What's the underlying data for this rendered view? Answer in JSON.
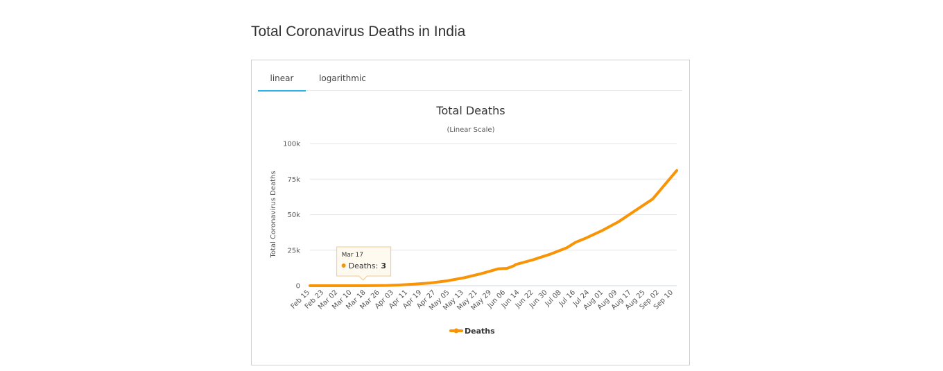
{
  "page": {
    "title": "Total Coronavirus Deaths in India"
  },
  "tabs": [
    {
      "label": "linear",
      "active": true
    },
    {
      "label": "logarithmic",
      "active": false
    }
  ],
  "colors": {
    "series": "#f89406",
    "tab_active": "#2cb5e8",
    "grid": "#e6e6e6"
  },
  "tooltip": {
    "date": "Mar 17",
    "series_label": "Deaths:",
    "value": "3",
    "x_index": 31
  },
  "legend": {
    "label": "Deaths"
  },
  "chart_data": {
    "type": "line",
    "title": "Total Deaths",
    "subtitle": "(Linear Scale)",
    "xlabel": "",
    "ylabel": "Total Coronavirus Deaths",
    "ylim": [
      0,
      100000
    ],
    "y_ticks": [
      0,
      25000,
      50000,
      75000,
      100000
    ],
    "y_tick_labels": [
      "0",
      "25k",
      "50k",
      "75k",
      "100k"
    ],
    "x_start": "Feb 15",
    "x_end": "Sep 16",
    "x_tick_labels": [
      "Feb 15",
      "Feb 23",
      "Mar 02",
      "Mar 10",
      "Mar 18",
      "Mar 26",
      "Apr 03",
      "Apr 11",
      "Apr 19",
      "Apr 27",
      "May 05",
      "May 13",
      "May 21",
      "May 29",
      "Jun 06",
      "Jun 14",
      "Jun 22",
      "Jun 30",
      "Jul 08",
      "Jul 16",
      "Jul 24",
      "Aug 01",
      "Aug 09",
      "Aug 17",
      "Aug 25",
      "Sep 02",
      "Sep 10"
    ],
    "grid": true,
    "legend_position": "bottom-center",
    "series": [
      {
        "name": "Deaths",
        "x_days": [
          0,
          20,
          31,
          45,
          52,
          60,
          70,
          80,
          90,
          100,
          110,
          115,
          119,
          120,
          130,
          140,
          150,
          155,
          160,
          170,
          180,
          190,
          200,
          214
        ],
        "values": [
          0,
          0,
          3,
          200,
          500,
          1000,
          1900,
          3400,
          5600,
          8500,
          11900,
          12200,
          14000,
          14900,
          18200,
          22100,
          26800,
          30600,
          33000,
          38500,
          45000,
          53000,
          61000,
          81000
        ]
      }
    ]
  }
}
